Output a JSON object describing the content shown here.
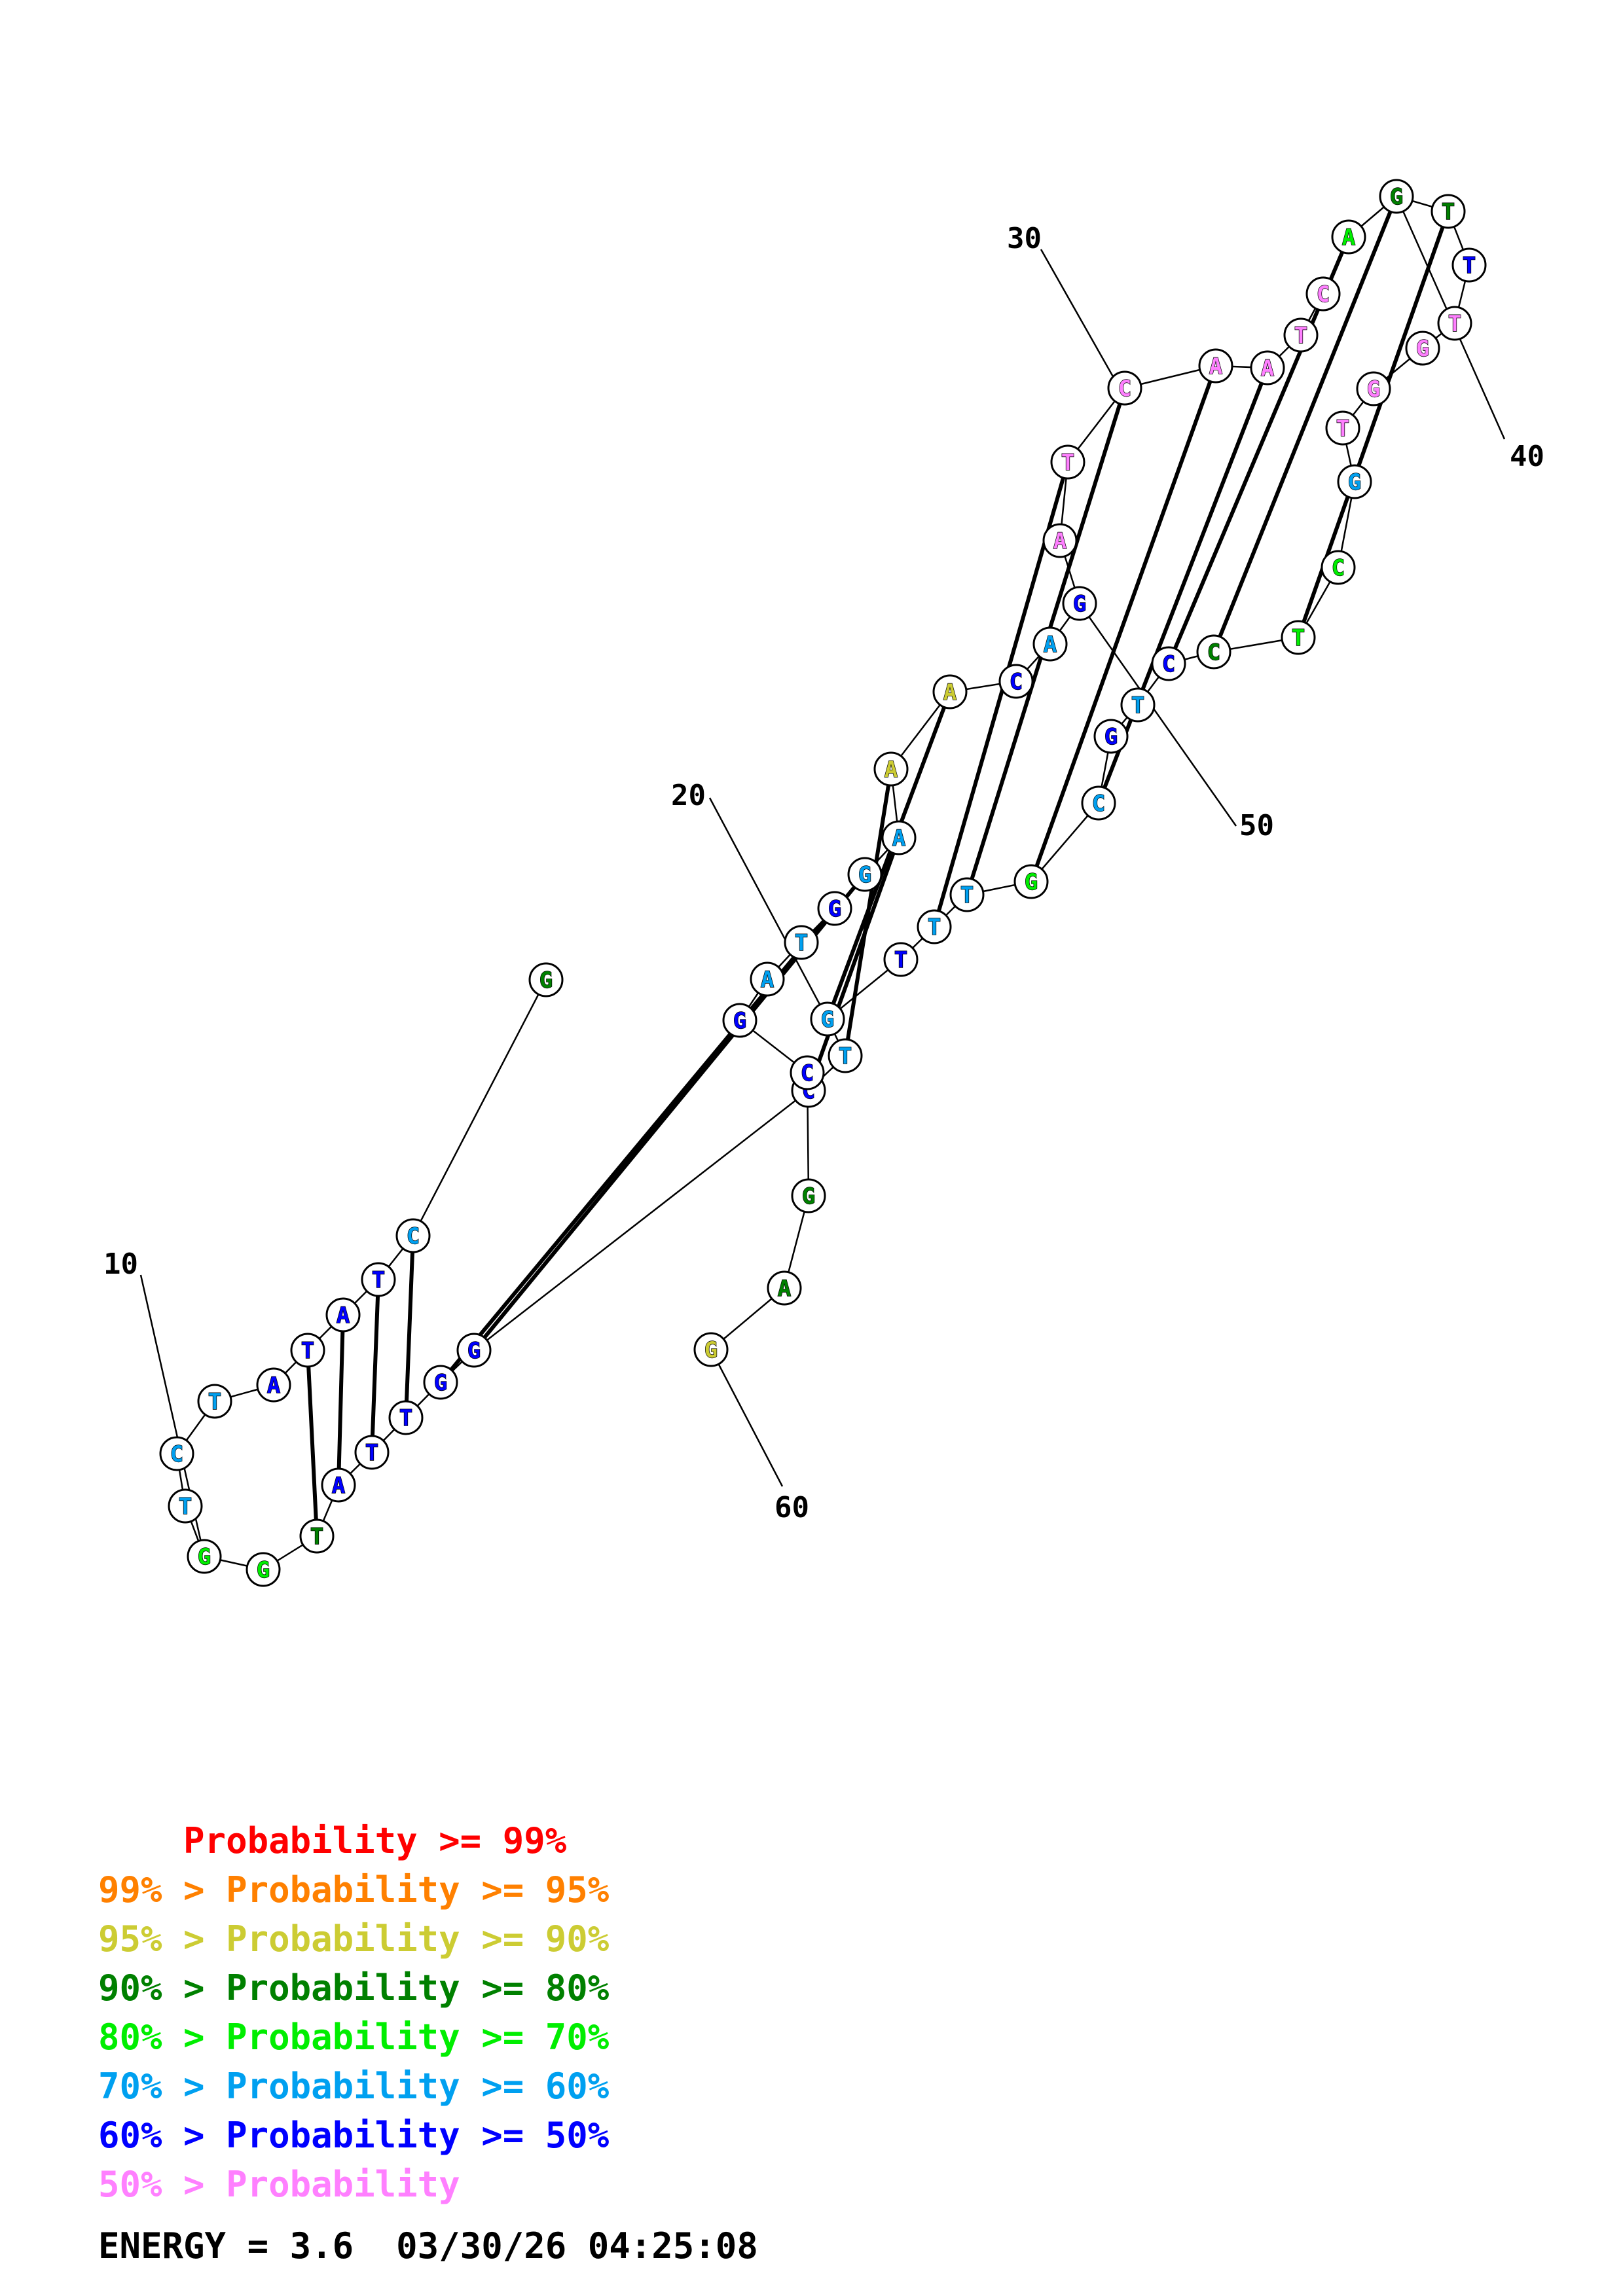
{
  "colors": {
    "p99": "#ff0000",
    "p95": "#ff8000",
    "p90": "#cccc33",
    "p80": "#008000",
    "p70": "#00ee00",
    "p60": "#00a0f0",
    "p50": "#0000ff",
    "plow": "#ff80ff"
  },
  "nucleotides": [
    {
      "n": 1,
      "base": "G",
      "prob": "p80"
    },
    {
      "n": 2,
      "base": "C",
      "prob": "p60"
    },
    {
      "n": 3,
      "base": "T",
      "prob": "p50"
    },
    {
      "n": 4,
      "base": "A",
      "prob": "p50"
    },
    {
      "n": 5,
      "base": "T",
      "prob": "p50"
    },
    {
      "n": 6,
      "base": "A",
      "prob": "p50"
    },
    {
      "n": 7,
      "base": "T",
      "prob": "p60"
    },
    {
      "n": 8,
      "base": "C",
      "prob": "p60"
    },
    {
      "n": 9,
      "base": "T",
      "prob": "p60"
    },
    {
      "n": 10,
      "base": "G",
      "prob": "p70"
    },
    {
      "n": 11,
      "base": "G",
      "prob": "p70"
    },
    {
      "n": 12,
      "base": "T",
      "prob": "p80"
    },
    {
      "n": 13,
      "base": "A",
      "prob": "p50"
    },
    {
      "n": 14,
      "base": "T",
      "prob": "p50"
    },
    {
      "n": 15,
      "base": "T",
      "prob": "p50"
    },
    {
      "n": 16,
      "base": "G",
      "prob": "p50"
    },
    {
      "n": 17,
      "base": "G",
      "prob": "p50"
    },
    {
      "n": 18,
      "base": "C",
      "prob": "p50"
    },
    {
      "n": 19,
      "base": "T",
      "prob": "p60"
    },
    {
      "n": 20,
      "base": "G",
      "prob": "p60"
    },
    {
      "n": 21,
      "base": "T",
      "prob": "p50"
    },
    {
      "n": 22,
      "base": "T",
      "prob": "p60"
    },
    {
      "n": 23,
      "base": "T",
      "prob": "p60"
    },
    {
      "n": 24,
      "base": "G",
      "prob": "p70"
    },
    {
      "n": 25,
      "base": "C",
      "prob": "p60"
    },
    {
      "n": 26,
      "base": "G",
      "prob": "p50"
    },
    {
      "n": 27,
      "base": "T",
      "prob": "p60"
    },
    {
      "n": 28,
      "base": "C",
      "prob": "p50"
    },
    {
      "n": 29,
      "base": "C",
      "prob": "p80"
    },
    {
      "n": 30,
      "base": "T",
      "prob": "p70"
    },
    {
      "n": 31,
      "base": "C",
      "prob": "p70"
    },
    {
      "n": 32,
      "base": "G",
      "prob": "p60"
    },
    {
      "n": 33,
      "base": "T",
      "prob": "plow"
    },
    {
      "n": 34,
      "base": "G",
      "prob": "plow"
    },
    {
      "n": 35,
      "base": "G",
      "prob": "plow"
    },
    {
      "n": 36,
      "base": "T",
      "prob": "plow"
    },
    {
      "n": 37,
      "base": "T",
      "prob": "p50"
    },
    {
      "n": 38,
      "base": "T",
      "prob": "p80"
    },
    {
      "n": 39,
      "base": "G",
      "prob": "p80"
    },
    {
      "n": 40,
      "base": "A",
      "prob": "p70"
    },
    {
      "n": 41,
      "base": "C",
      "prob": "plow"
    },
    {
      "n": 42,
      "base": "T",
      "prob": "plow"
    },
    {
      "n": 43,
      "base": "A",
      "prob": "plow"
    },
    {
      "n": 44,
      "base": "A",
      "prob": "plow"
    },
    {
      "n": 45,
      "base": "C",
      "prob": "plow"
    },
    {
      "n": 46,
      "base": "T",
      "prob": "plow"
    },
    {
      "n": 47,
      "base": "A",
      "prob": "plow"
    },
    {
      "n": 48,
      "base": "G",
      "prob": "p50"
    },
    {
      "n": 49,
      "base": "A",
      "prob": "p60"
    },
    {
      "n": 50,
      "base": "C",
      "prob": "p50"
    },
    {
      "n": 51,
      "base": "A",
      "prob": "p90"
    },
    {
      "n": 52,
      "base": "A",
      "prob": "p90"
    },
    {
      "n": 53,
      "base": "A",
      "prob": "p60"
    },
    {
      "n": 54,
      "base": "G",
      "prob": "p60"
    },
    {
      "n": 55,
      "base": "G",
      "prob": "p50"
    },
    {
      "n": 56,
      "base": "T",
      "prob": "p60"
    },
    {
      "n": 57,
      "base": "A",
      "prob": "p60"
    },
    {
      "n": 58,
      "base": "G",
      "prob": "p50"
    },
    {
      "n": 59,
      "base": "C",
      "prob": "p50"
    },
    {
      "n": 60,
      "base": "G",
      "prob": "p80"
    },
    {
      "n": 61,
      "base": "A",
      "prob": "p80"
    },
    {
      "n": 62,
      "base": "G",
      "prob": "p90"
    }
  ],
  "pairs": [
    [
      2,
      15
    ],
    [
      3,
      14
    ],
    [
      4,
      13
    ],
    [
      5,
      12
    ],
    [
      16,
      55
    ],
    [
      17,
      54
    ],
    [
      18,
      53
    ],
    [
      19,
      52
    ],
    [
      20,
      51
    ],
    [
      22,
      46
    ],
    [
      23,
      45
    ],
    [
      24,
      44
    ],
    [
      25,
      43
    ],
    [
      28,
      40
    ],
    [
      29,
      39
    ],
    [
      30,
      38
    ]
  ],
  "ticks": [
    {
      "label": "10",
      "n": 10
    },
    {
      "label": "20",
      "n": 20
    },
    {
      "label": "30",
      "n": 30
    },
    {
      "label": "40",
      "n": 40
    },
    {
      "label": "50",
      "n": 50
    },
    {
      "label": "60",
      "n": 60
    }
  ],
  "legend": [
    {
      "prefix": "    ",
      "text": "Probability >= 99%",
      "color": "p99"
    },
    {
      "prefix": "99% > ",
      "text": "Probability >= 95%",
      "color": "p95"
    },
    {
      "prefix": "95% > ",
      "text": "Probability >= 90%",
      "color": "p90"
    },
    {
      "prefix": "90% > ",
      "text": "Probability >= 80%",
      "color": "p80"
    },
    {
      "prefix": "80% > ",
      "text": "Probability >= 70%",
      "color": "p70"
    },
    {
      "prefix": "70% > ",
      "text": "Probability >= 60%",
      "color": "p60"
    },
    {
      "prefix": "60% > ",
      "text": "Probability >= 50%",
      "color": "p50"
    },
    {
      "prefix": "50% > ",
      "text": "Probability",
      "color": "plow"
    }
  ],
  "footer": {
    "text": "ENERGY = 3.6  03/30/26 04:25:08"
  }
}
